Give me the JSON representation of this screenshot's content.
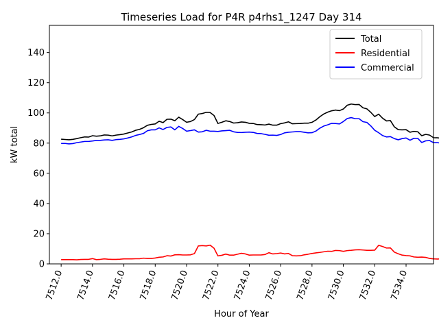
{
  "chart_data": {
    "type": "line",
    "title": "Timeseries Load for P4R p4rhs1_1247  Day 314",
    "xlabel": "Hour of Year",
    "ylabel": "kW total",
    "xlim": [
      7511.25,
      7535.75
    ],
    "ylim": [
      0,
      158
    ],
    "xticks": [
      7512,
      7514,
      7516,
      7518,
      7520,
      7522,
      7524,
      7526,
      7528,
      7530,
      7532,
      7534
    ],
    "xtick_labels": [
      "7512.0",
      "7514.0",
      "7516.0",
      "7518.0",
      "7520.0",
      "7522.0",
      "7524.0",
      "7526.0",
      "7528.0",
      "7530.0",
      "7532.0",
      "7534.0"
    ],
    "yticks": [
      0,
      20,
      40,
      60,
      80,
      100,
      120,
      140
    ],
    "ytick_labels": [
      "0",
      "20",
      "40",
      "60",
      "80",
      "100",
      "120",
      "140"
    ],
    "legend": {
      "position": "top-right",
      "entries": [
        "Total",
        "Residential",
        "Commercial"
      ]
    },
    "x_start": 7512.0,
    "x_step": 0.25,
    "series": [
      {
        "name": "Total",
        "color": "#000000",
        "values": [
          82.6,
          82.4,
          82.2,
          82.5,
          83.0,
          83.6,
          84.1,
          84.0,
          84.9,
          84.6,
          84.8,
          85.4,
          85.3,
          84.8,
          85.3,
          85.6,
          86.0,
          86.7,
          87.4,
          88.5,
          89.1,
          90.2,
          91.8,
          92.4,
          92.7,
          94.5,
          93.6,
          95.8,
          95.9,
          94.8,
          97.2,
          95.6,
          93.8,
          94.3,
          95.6,
          99.2,
          99.6,
          100.4,
          100.3,
          98.3,
          93.0,
          93.8,
          94.8,
          94.3,
          93.3,
          93.5,
          94.0,
          93.8,
          93.1,
          93.0,
          92.3,
          92.2,
          92.0,
          92.6,
          91.9,
          91.9,
          92.9,
          93.4,
          94.1,
          92.8,
          92.9,
          93.0,
          93.2,
          93.2,
          93.8,
          95.3,
          97.5,
          99.3,
          100.5,
          101.4,
          101.9,
          101.5,
          102.6,
          105.1,
          105.9,
          105.5,
          105.6,
          103.4,
          102.7,
          100.4,
          97.6,
          99.2,
          96.5,
          94.7,
          94.9,
          90.8,
          88.9,
          88.8,
          88.9,
          87.2,
          87.8,
          87.5,
          84.9,
          85.8,
          85.3,
          83.6,
          83.5,
          83.2
        ]
      },
      {
        "name": "Residential",
        "color": "#ff0000",
        "values": [
          2.8,
          2.8,
          2.8,
          2.8,
          2.7,
          2.9,
          3.0,
          3.0,
          3.5,
          2.8,
          3.0,
          3.3,
          3.1,
          3.0,
          3.0,
          3.1,
          3.3,
          3.3,
          3.3,
          3.4,
          3.4,
          3.8,
          3.6,
          3.6,
          3.9,
          4.4,
          4.6,
          5.4,
          5.2,
          6.0,
          6.1,
          5.9,
          5.9,
          6.0,
          6.8,
          11.9,
          12.1,
          11.9,
          12.4,
          10.4,
          5.3,
          5.7,
          6.5,
          5.8,
          5.8,
          6.4,
          7.0,
          6.6,
          5.8,
          5.9,
          5.9,
          5.9,
          6.2,
          7.4,
          6.6,
          6.8,
          7.2,
          6.6,
          6.9,
          5.4,
          5.3,
          5.4,
          6.0,
          6.4,
          6.9,
          7.3,
          7.6,
          8.0,
          8.4,
          8.3,
          8.9,
          8.8,
          8.3,
          8.8,
          9.0,
          9.3,
          9.4,
          9.2,
          9.0,
          9.0,
          9.1,
          12.3,
          11.5,
          10.5,
          10.6,
          7.8,
          6.7,
          5.8,
          5.5,
          5.3,
          4.6,
          4.4,
          4.5,
          4.3,
          3.6,
          3.3,
          3.2,
          3.3
        ]
      },
      {
        "name": "Commercial",
        "color": "#0000ff",
        "values": [
          79.8,
          79.8,
          79.5,
          79.7,
          80.3,
          80.7,
          81.1,
          81.1,
          81.4,
          81.8,
          81.8,
          82.1,
          82.2,
          81.8,
          82.3,
          82.5,
          82.8,
          83.4,
          84.1,
          85.1,
          85.7,
          86.4,
          88.2,
          88.8,
          88.8,
          90.1,
          89.0,
          90.4,
          90.7,
          88.8,
          91.1,
          89.7,
          87.9,
          88.3,
          88.8,
          87.3,
          87.5,
          88.5,
          87.9,
          87.9,
          87.7,
          88.1,
          88.3,
          88.5,
          87.5,
          87.1,
          87.0,
          87.2,
          87.3,
          87.1,
          86.4,
          86.3,
          85.8,
          85.2,
          85.3,
          85.1,
          85.7,
          86.8,
          87.2,
          87.4,
          87.6,
          87.6,
          87.2,
          86.8,
          86.9,
          88.0,
          89.9,
          91.3,
          92.1,
          93.1,
          93.0,
          92.7,
          94.3,
          96.3,
          96.9,
          96.2,
          96.2,
          94.2,
          93.7,
          91.4,
          88.5,
          86.9,
          85.0,
          84.1,
          84.3,
          83.0,
          82.2,
          83.0,
          83.4,
          81.9,
          83.2,
          83.1,
          80.4,
          81.5,
          81.7,
          80.3,
          80.3,
          79.9
        ]
      }
    ]
  }
}
